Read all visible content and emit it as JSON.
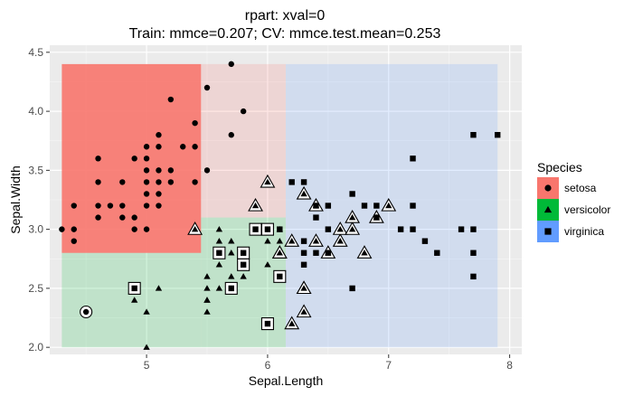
{
  "chart_data": {
    "type": "scatter",
    "title": "rpart: xval=0",
    "subtitle": "Train: mmce=0.207; CV: mmce.test.mean=0.253",
    "xlabel": "Sepal.Length",
    "ylabel": "Sepal.Width",
    "xlim": [
      4.2,
      8.1
    ],
    "ylim": [
      1.94,
      4.56
    ],
    "x_ticks": [
      5,
      6,
      7,
      8
    ],
    "y_ticks": [
      2.0,
      2.5,
      3.0,
      3.5,
      4.0,
      4.5
    ],
    "x_tick_labels": [
      "5",
      "6",
      "7",
      "8"
    ],
    "y_tick_labels": [
      "2.0",
      "2.5",
      "3.0",
      "3.5",
      "4.0",
      "4.5"
    ],
    "grid": true,
    "legend": {
      "title": "Species",
      "placement": "right",
      "entries": [
        {
          "name": "setosa",
          "color": "#F8766D",
          "shape": "circle"
        },
        {
          "name": "versicolor",
          "color": "#00BA38",
          "shape": "triangle"
        },
        {
          "name": "virginica",
          "color": "#619CFF",
          "shape": "square"
        }
      ]
    },
    "regions": [
      {
        "class": "setosa",
        "x0": 4.3,
        "x1": 5.45,
        "y0": 2.8,
        "y1": 4.4,
        "opacity": 0.9
      },
      {
        "class": "versicolor",
        "x0": 4.3,
        "x1": 5.45,
        "y0": 2.0,
        "y1": 2.8,
        "opacity": 0.18
      },
      {
        "class": "setosa",
        "x0": 5.45,
        "x1": 6.15,
        "y0": 3.1,
        "y1": 4.4,
        "opacity": 0.18
      },
      {
        "class": "versicolor",
        "x0": 5.45,
        "x1": 6.15,
        "y0": 2.0,
        "y1": 3.1,
        "opacity": 0.18
      },
      {
        "class": "virginica",
        "x0": 6.15,
        "x1": 7.9,
        "y0": 2.0,
        "y1": 4.4,
        "opacity": 0.18
      }
    ],
    "series": [
      {
        "name": "setosa",
        "points": [
          [
            5.7,
            4.4
          ],
          [
            5.5,
            4.2
          ],
          [
            5.2,
            4.1
          ],
          [
            5.8,
            4.0
          ],
          [
            5.4,
            3.9
          ],
          [
            5.7,
            3.8
          ],
          [
            5.1,
            3.8
          ],
          [
            5.0,
            3.7
          ],
          [
            5.1,
            3.7
          ],
          [
            5.3,
            3.7
          ],
          [
            5.4,
            3.7
          ],
          [
            5.2,
            3.5
          ],
          [
            5.5,
            3.5
          ],
          [
            4.6,
            3.6
          ],
          [
            4.9,
            3.6
          ],
          [
            5.0,
            3.6
          ],
          [
            4.6,
            3.4
          ],
          [
            4.8,
            3.4
          ],
          [
            5.0,
            3.4
          ],
          [
            5.1,
            3.4
          ],
          [
            5.2,
            3.4
          ],
          [
            5.4,
            3.4
          ],
          [
            5.0,
            3.5
          ],
          [
            5.1,
            3.5
          ],
          [
            4.7,
            3.2
          ],
          [
            4.8,
            3.2
          ],
          [
            5.0,
            3.2
          ],
          [
            5.1,
            3.2
          ],
          [
            5.0,
            3.3
          ],
          [
            5.1,
            3.3
          ],
          [
            4.9,
            3.1
          ],
          [
            4.8,
            3.1
          ],
          [
            4.6,
            3.1
          ],
          [
            4.4,
            3.2
          ],
          [
            4.6,
            3.2
          ],
          [
            4.9,
            3.0
          ],
          [
            4.3,
            3.0
          ],
          [
            4.4,
            3.0
          ],
          [
            5.0,
            3.0
          ],
          [
            4.4,
            2.9
          ],
          [
            4.5,
            2.3
          ]
        ],
        "misclassified": [
          [
            4.5,
            2.3
          ]
        ]
      },
      {
        "name": "versicolor",
        "points": [
          [
            5.0,
            2.0
          ],
          [
            5.0,
            2.3
          ],
          [
            4.9,
            2.4
          ],
          [
            5.1,
            2.5
          ],
          [
            5.5,
            2.3
          ],
          [
            5.5,
            2.4
          ],
          [
            5.5,
            2.5
          ],
          [
            5.5,
            2.6
          ],
          [
            5.6,
            2.5
          ],
          [
            5.7,
            2.6
          ],
          [
            5.6,
            2.7
          ],
          [
            5.6,
            2.9
          ],
          [
            5.5,
            2.4
          ],
          [
            5.6,
            3.0
          ],
          [
            5.7,
            2.8
          ],
          [
            5.7,
            2.9
          ],
          [
            5.8,
            2.7
          ],
          [
            6.0,
            2.2
          ],
          [
            6.0,
            2.9
          ],
          [
            6.1,
            2.8
          ],
          [
            6.1,
            2.9
          ],
          [
            6.0,
            2.7
          ],
          [
            6.1,
            3.0
          ],
          [
            5.8,
            2.6
          ],
          [
            6.3,
            2.3
          ],
          [
            6.2,
            2.2
          ],
          [
            6.3,
            2.5
          ],
          [
            6.3,
            3.3
          ],
          [
            6.4,
            2.9
          ],
          [
            6.4,
            3.2
          ],
          [
            6.5,
            2.8
          ],
          [
            6.6,
            2.9
          ],
          [
            6.6,
            3.0
          ],
          [
            6.7,
            3.0
          ],
          [
            6.7,
            3.1
          ],
          [
            6.8,
            2.8
          ],
          [
            6.9,
            3.1
          ],
          [
            7.0,
            3.2
          ],
          [
            6.3,
            2.5
          ],
          [
            5.9,
            3.2
          ],
          [
            6.0,
            3.4
          ],
          [
            5.4,
            3.0
          ],
          [
            6.2,
            2.9
          ],
          [
            6.1,
            2.8
          ]
        ],
        "misclassified": [
          [
            6.3,
            2.5
          ],
          [
            6.3,
            2.3
          ],
          [
            6.2,
            2.2
          ],
          [
            6.3,
            3.3
          ],
          [
            6.4,
            2.9
          ],
          [
            6.4,
            3.2
          ],
          [
            6.5,
            2.8
          ],
          [
            6.6,
            2.9
          ],
          [
            6.6,
            3.0
          ],
          [
            6.7,
            3.0
          ],
          [
            6.7,
            3.1
          ],
          [
            6.8,
            2.8
          ],
          [
            6.9,
            3.1
          ],
          [
            7.0,
            3.2
          ],
          [
            5.9,
            3.2
          ],
          [
            6.0,
            3.4
          ],
          [
            5.4,
            3.0
          ],
          [
            6.2,
            2.9
          ],
          [
            6.1,
            2.8
          ]
        ]
      },
      {
        "name": "virginica",
        "points": [
          [
            7.7,
            3.8
          ],
          [
            7.9,
            3.8
          ],
          [
            7.2,
            3.6
          ],
          [
            6.2,
            3.4
          ],
          [
            6.3,
            3.4
          ],
          [
            6.4,
            3.1
          ],
          [
            6.4,
            3.2
          ],
          [
            6.5,
            3.0
          ],
          [
            6.5,
            3.2
          ],
          [
            6.7,
            3.3
          ],
          [
            6.8,
            3.2
          ],
          [
            6.9,
            3.1
          ],
          [
            7.1,
            3.0
          ],
          [
            7.2,
            3.2
          ],
          [
            7.2,
            3.0
          ],
          [
            6.1,
            3.0
          ],
          [
            6.3,
            2.9
          ],
          [
            6.3,
            2.8
          ],
          [
            6.3,
            2.7
          ],
          [
            6.4,
            2.8
          ],
          [
            6.5,
            2.8
          ],
          [
            6.7,
            2.5
          ],
          [
            6.9,
            3.2
          ],
          [
            7.3,
            2.9
          ],
          [
            7.4,
            2.8
          ],
          [
            7.6,
            3.0
          ],
          [
            7.7,
            3.0
          ],
          [
            7.7,
            2.8
          ],
          [
            7.7,
            2.6
          ],
          [
            6.0,
            3.0
          ],
          [
            6.0,
            2.2
          ],
          [
            5.8,
            2.7
          ],
          [
            5.6,
            2.8
          ],
          [
            5.7,
            2.5
          ],
          [
            4.9,
            2.5
          ],
          [
            5.9,
            3.0
          ],
          [
            5.8,
            2.8
          ],
          [
            6.1,
            2.6
          ]
        ],
        "misclassified": [
          [
            6.0,
            3.0
          ],
          [
            6.0,
            2.2
          ],
          [
            5.8,
            2.7
          ],
          [
            5.6,
            2.8
          ],
          [
            5.7,
            2.5
          ],
          [
            4.9,
            2.5
          ],
          [
            5.9,
            3.0
          ],
          [
            5.8,
            2.8
          ],
          [
            6.1,
            2.6
          ]
        ]
      }
    ]
  }
}
